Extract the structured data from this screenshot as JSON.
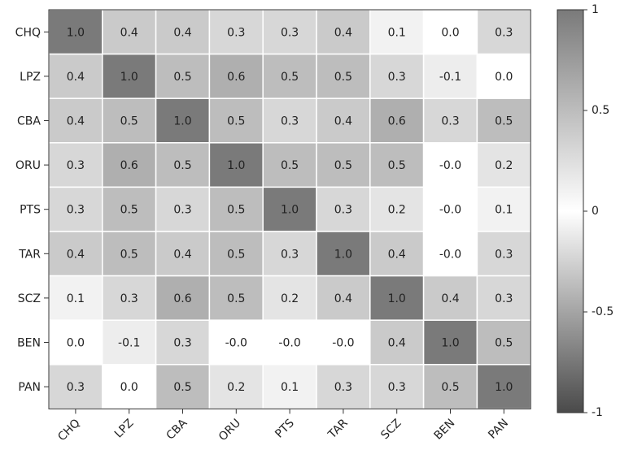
{
  "chart_data": {
    "type": "heatmap",
    "title": "",
    "xlabel": "",
    "ylabel": "",
    "rows": [
      "CHQ",
      "LPZ",
      "CBA",
      "ORU",
      "PTS",
      "TAR",
      "SCZ",
      "BEN",
      "PAN"
    ],
    "cols": [
      "CHQ",
      "LPZ",
      "CBA",
      "ORU",
      "PTS",
      "TAR",
      "SCZ",
      "BEN",
      "PAN"
    ],
    "values": [
      [
        1.0,
        0.4,
        0.4,
        0.3,
        0.3,
        0.4,
        0.1,
        0.0,
        0.3
      ],
      [
        0.4,
        1.0,
        0.5,
        0.6,
        0.5,
        0.5,
        0.3,
        -0.1,
        0.0
      ],
      [
        0.4,
        0.5,
        1.0,
        0.5,
        0.3,
        0.4,
        0.6,
        0.3,
        0.5
      ],
      [
        0.3,
        0.6,
        0.5,
        1.0,
        0.5,
        0.5,
        0.5,
        -0.0,
        0.2
      ],
      [
        0.3,
        0.5,
        0.3,
        0.5,
        1.0,
        0.3,
        0.2,
        -0.0,
        0.1
      ],
      [
        0.4,
        0.5,
        0.4,
        0.5,
        0.3,
        1.0,
        0.4,
        -0.0,
        0.3
      ],
      [
        0.1,
        0.3,
        0.6,
        0.5,
        0.2,
        0.4,
        1.0,
        0.4,
        0.3
      ],
      [
        0.0,
        -0.1,
        0.3,
        -0.0,
        -0.0,
        -0.0,
        0.4,
        1.0,
        0.5
      ],
      [
        0.3,
        0.0,
        0.5,
        0.2,
        0.1,
        0.3,
        0.3,
        0.5,
        1.0
      ]
    ],
    "value_labels": [
      [
        "1.0",
        "0.4",
        "0.4",
        "0.3",
        "0.3",
        "0.4",
        "0.1",
        "0.0",
        "0.3"
      ],
      [
        "0.4",
        "1.0",
        "0.5",
        "0.6",
        "0.5",
        "0.5",
        "0.3",
        "-0.1",
        "0.0"
      ],
      [
        "0.4",
        "0.5",
        "1.0",
        "0.5",
        "0.3",
        "0.4",
        "0.6",
        "0.3",
        "0.5"
      ],
      [
        "0.3",
        "0.6",
        "0.5",
        "1.0",
        "0.5",
        "0.5",
        "0.5",
        "-0.0",
        "0.2"
      ],
      [
        "0.3",
        "0.5",
        "0.3",
        "0.5",
        "1.0",
        "0.3",
        "0.2",
        "-0.0",
        "0.1"
      ],
      [
        "0.4",
        "0.5",
        "0.4",
        "0.5",
        "0.3",
        "1.0",
        "0.4",
        "-0.0",
        "0.3"
      ],
      [
        "0.1",
        "0.3",
        "0.6",
        "0.5",
        "0.2",
        "0.4",
        "1.0",
        "0.4",
        "0.3"
      ],
      [
        "0.0",
        "-0.1",
        "0.3",
        "-0.0",
        "-0.0",
        "-0.0",
        "0.4",
        "1.0",
        "0.5"
      ],
      [
        "0.3",
        "0.0",
        "0.5",
        "0.2",
        "0.1",
        "0.3",
        "0.3",
        "0.5",
        "1.0"
      ]
    ],
    "colorbar": {
      "range": [
        -1,
        1
      ],
      "ticks": [
        1,
        0.5,
        0,
        -0.5,
        -1
      ],
      "tick_labels": [
        "1",
        "0.5",
        "0",
        "-0.5",
        "-1"
      ]
    },
    "colors": {
      "low": "#4a4a4a",
      "mid": "#ffffff",
      "high": "#7a7a7a",
      "grid": "#ffffff",
      "border": "#333333"
    }
  }
}
